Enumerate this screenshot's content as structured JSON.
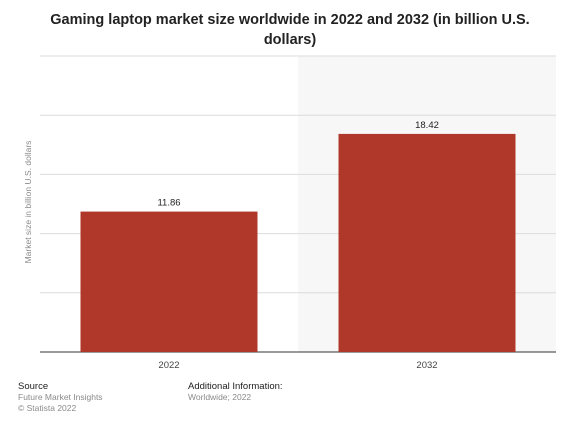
{
  "chart_data": {
    "type": "bar",
    "title": "Gaming laptop market size worldwide in 2022 and 2032 (in billion U.S. dollars)",
    "categories": [
      "2022",
      "2032"
    ],
    "values": [
      11.86,
      18.42
    ],
    "data_labels": [
      "11.86",
      "18.42"
    ],
    "xlabel": "",
    "ylabel": "Market size in billion U.S. dollars",
    "ylim": [
      0,
      25
    ],
    "grid": true,
    "legend": "none",
    "bar_color": "#b0382b",
    "panel_colors": [
      "#ffffff",
      "#f7f7f7"
    ]
  },
  "footer": {
    "source_heading": "Source",
    "source_lines": [
      "Future Market Insights",
      "© Statista 2022"
    ],
    "info_heading": "Additional Information:",
    "info_lines": [
      "Worldwide; 2022"
    ]
  }
}
